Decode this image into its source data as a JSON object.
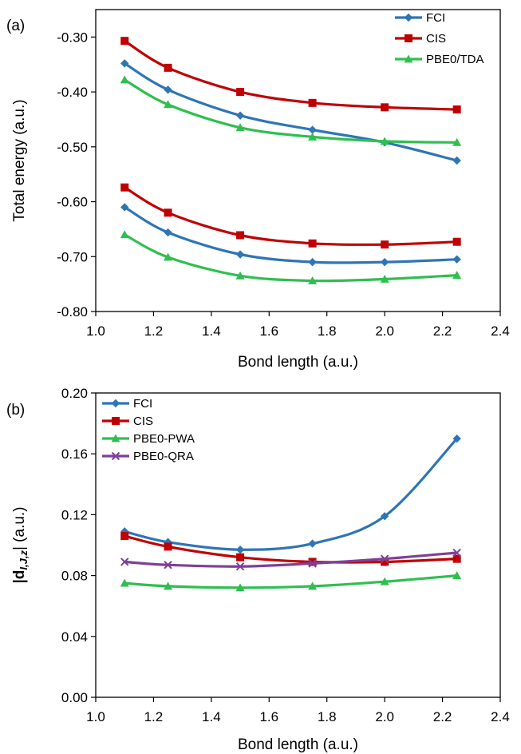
{
  "chart_data": [
    {
      "type": "line",
      "panel_label": "(a)",
      "xlabel": "Bond length (a.u.)",
      "ylabel": "Total energy (a.u.)",
      "xlim": [
        1.0,
        2.4
      ],
      "ylim": [
        -0.8,
        -0.25
      ],
      "xticks": [
        1.0,
        1.2,
        1.4,
        1.6,
        1.8,
        2.0,
        2.2,
        2.4
      ],
      "xtick_labels": [
        "1.0",
        "1.2",
        "1.4",
        "1.6",
        "1.8",
        "2.0",
        "2.2",
        "2.4"
      ],
      "yticks": [
        -0.3,
        -0.4,
        -0.5,
        -0.6,
        -0.7,
        -0.8
      ],
      "ytick_labels": [
        "-0.30",
        "-0.40",
        "-0.50",
        "-0.60",
        "-0.70",
        "-0.80"
      ],
      "legend_position": "top-right",
      "x": [
        1.1,
        1.25,
        1.5,
        1.75,
        2.0,
        2.25
      ],
      "series": [
        {
          "name": "FCI",
          "color": "#2e75b6",
          "marker": "diamond",
          "in_legend": true,
          "values": [
            -0.348,
            -0.396,
            -0.443,
            -0.469,
            -0.492,
            -0.525
          ]
        },
        {
          "name": "CIS",
          "color": "#c00000",
          "marker": "square",
          "in_legend": true,
          "values": [
            -0.307,
            -0.356,
            -0.4,
            -0.42,
            -0.428,
            -0.432
          ]
        },
        {
          "name": "PBE0/TDA",
          "color": "#2fbf4f",
          "marker": "triangle",
          "in_legend": true,
          "values": [
            -0.378,
            -0.423,
            -0.465,
            -0.482,
            -0.49,
            -0.492
          ]
        },
        {
          "name": "FCI",
          "color": "#2e75b6",
          "marker": "diamond",
          "in_legend": false,
          "values": [
            -0.61,
            -0.656,
            -0.696,
            -0.71,
            -0.71,
            -0.705
          ]
        },
        {
          "name": "CIS",
          "color": "#c00000",
          "marker": "square",
          "in_legend": false,
          "values": [
            -0.574,
            -0.62,
            -0.661,
            -0.676,
            -0.678,
            -0.673
          ]
        },
        {
          "name": "PBE0/TDA",
          "color": "#2fbf4f",
          "marker": "triangle",
          "in_legend": false,
          "values": [
            -0.66,
            -0.701,
            -0.735,
            -0.744,
            -0.741,
            -0.734
          ]
        }
      ]
    },
    {
      "type": "line",
      "panel_label": "(b)",
      "xlabel": "Bond length (a.u.)",
      "ylabel_main": "|d",
      "ylabel_sub": "I,J,z",
      "ylabel_end": "| (a.u.)",
      "xlim": [
        1.0,
        2.4
      ],
      "ylim": [
        0.0,
        0.2
      ],
      "xticks": [
        1.0,
        1.2,
        1.4,
        1.6,
        1.8,
        2.0,
        2.2,
        2.4
      ],
      "xtick_labels": [
        "1.0",
        "1.2",
        "1.4",
        "1.6",
        "1.8",
        "2.0",
        "2.2",
        "2.4"
      ],
      "yticks": [
        0.0,
        0.04,
        0.08,
        0.12,
        0.16,
        0.2
      ],
      "ytick_labels": [
        "0.00",
        "0.04",
        "0.08",
        "0.12",
        "0.16",
        "0.20"
      ],
      "legend_position": "top-left",
      "x": [
        1.1,
        1.25,
        1.5,
        1.75,
        2.0,
        2.25
      ],
      "series": [
        {
          "name": "FCI",
          "color": "#2e75b6",
          "marker": "diamond",
          "in_legend": true,
          "values": [
            0.109,
            0.102,
            0.097,
            0.101,
            0.119,
            0.17
          ]
        },
        {
          "name": "CIS",
          "color": "#c00000",
          "marker": "square",
          "in_legend": true,
          "values": [
            0.106,
            0.099,
            0.092,
            0.089,
            0.089,
            0.091
          ]
        },
        {
          "name": "PBE0-PWA",
          "color": "#2fbf4f",
          "marker": "triangle",
          "in_legend": true,
          "values": [
            0.075,
            0.073,
            0.072,
            0.073,
            0.076,
            0.08
          ]
        },
        {
          "name": "PBE0-QRA",
          "color": "#7f3f98",
          "marker": "x",
          "in_legend": true,
          "values": [
            0.089,
            0.087,
            0.086,
            0.088,
            0.091,
            0.095
          ]
        }
      ]
    }
  ]
}
